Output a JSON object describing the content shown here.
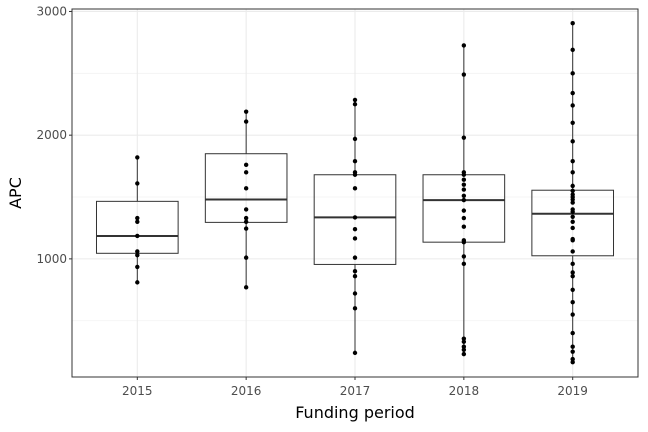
{
  "chart_data": {
    "type": "box",
    "xlabel": "Funding period",
    "ylabel": "APC",
    "ylim": [
      45,
      3020
    ],
    "y_ticks": [
      1000,
      2000,
      3000
    ],
    "y_minor_ticks": [
      500,
      1500,
      2500
    ],
    "grid": true,
    "theme": "bw",
    "categories": [
      "2015",
      "2016",
      "2017",
      "2018",
      "2019"
    ],
    "boxes": [
      {
        "category": "2015",
        "whisker_low": 810,
        "q1": 1045,
        "median": 1185,
        "q3": 1465,
        "whisker_high": 1820
      },
      {
        "category": "2016",
        "whisker_low": 770,
        "q1": 1295,
        "median": 1480,
        "q3": 1850,
        "whisker_high": 2190
      },
      {
        "category": "2017",
        "whisker_low": 240,
        "q1": 955,
        "median": 1335,
        "q3": 1680,
        "whisker_high": 2285
      },
      {
        "category": "2018",
        "whisker_low": 230,
        "q1": 1135,
        "median": 1475,
        "q3": 1680,
        "whisker_high": 2725
      },
      {
        "category": "2019",
        "whisker_low": 165,
        "q1": 1025,
        "median": 1365,
        "q3": 1555,
        "whisker_high": 2905
      }
    ],
    "points": [
      {
        "category": "2015",
        "values": [
          810,
          935,
          1030,
          1060,
          1185,
          1300,
          1330,
          1610,
          1820
        ]
      },
      {
        "category": "2016",
        "values": [
          770,
          1010,
          1245,
          1300,
          1330,
          1400,
          1570,
          1700,
          1760,
          2110,
          2190
        ]
      },
      {
        "category": "2017",
        "values": [
          240,
          600,
          720,
          860,
          900,
          1010,
          1165,
          1240,
          1335,
          1570,
          1680,
          1700,
          1790,
          1970,
          2250,
          2285
        ]
      },
      {
        "category": "2018",
        "values": [
          230,
          265,
          290,
          330,
          355,
          960,
          1020,
          1135,
          1150,
          1260,
          1330,
          1390,
          1475,
          1510,
          1560,
          1600,
          1640,
          1680,
          1700,
          1980,
          2490,
          2725
        ]
      },
      {
        "category": "2019",
        "values": [
          165,
          190,
          250,
          290,
          400,
          550,
          650,
          750,
          860,
          890,
          960,
          1060,
          1150,
          1160,
          1250,
          1300,
          1340,
          1380,
          1400,
          1455,
          1480,
          1500,
          1520,
          1550,
          1590,
          1700,
          1790,
          1950,
          2100,
          2240,
          2340,
          2500,
          2690,
          2905
        ]
      }
    ]
  }
}
